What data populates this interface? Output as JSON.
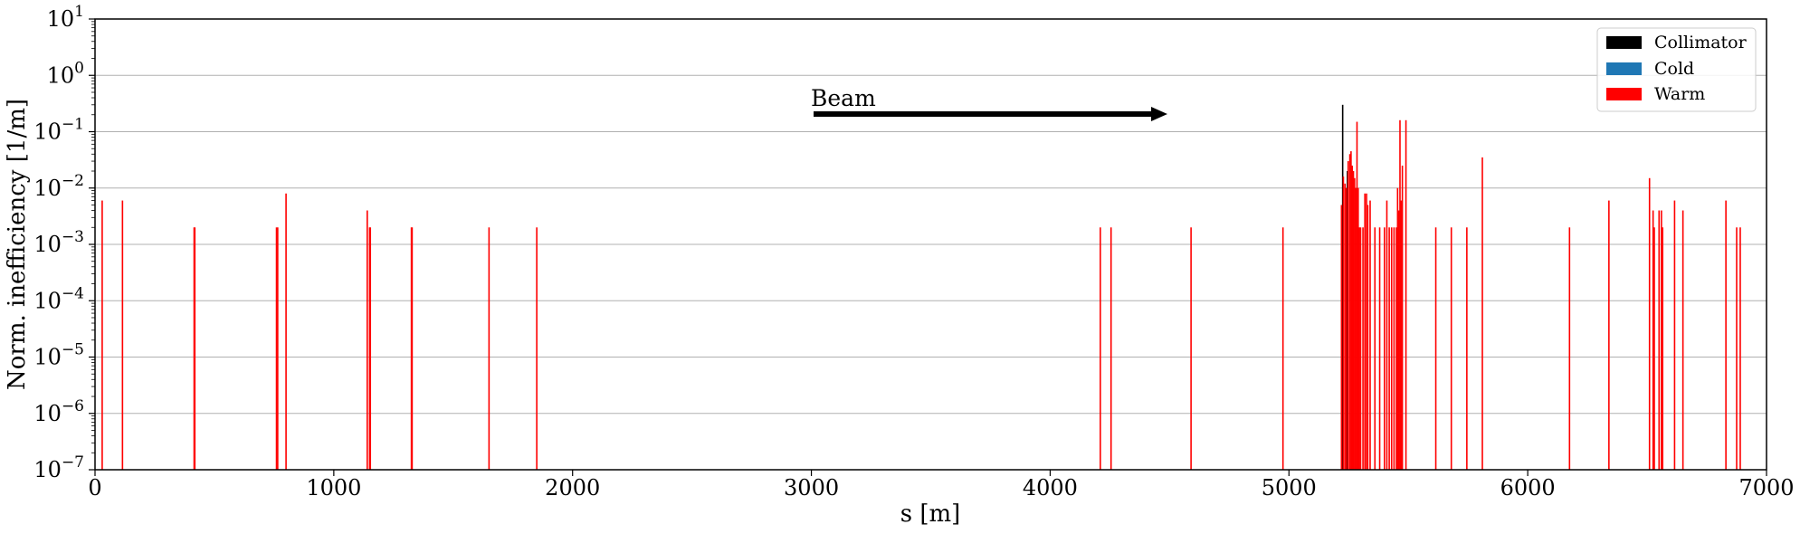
{
  "chart_data": {
    "type": "bar",
    "xlabel": "s [m]",
    "ylabel": "Norm. inefficiency [1/m]",
    "xlim": [
      0,
      7000
    ],
    "ylim": [
      1e-07,
      10
    ],
    "yscale": "log",
    "grid": "horizontal",
    "legend_placement": "top-right",
    "x_ticks": [
      "0",
      "1000",
      "2000",
      "3000",
      "4000",
      "5000",
      "6000",
      "7000"
    ],
    "y_ticks": [
      {
        "base": "10",
        "exp": "1"
      },
      {
        "base": "10",
        "exp": "0"
      },
      {
        "base": "10",
        "exp": "−1"
      },
      {
        "base": "10",
        "exp": "−2"
      },
      {
        "base": "10",
        "exp": "−3"
      },
      {
        "base": "10",
        "exp": "−4"
      },
      {
        "base": "10",
        "exp": "−5"
      },
      {
        "base": "10",
        "exp": "−6"
      },
      {
        "base": "10",
        "exp": "−7"
      }
    ],
    "annotation": {
      "text": "Beam",
      "arrow_from_x": 3000,
      "arrow_to_x": 4500,
      "y": 0.2
    },
    "series": [
      {
        "name": "Collimator",
        "color": "#000000",
        "points": [
          {
            "s": 5225,
            "v": 0.3
          },
          {
            "s": 5245,
            "v": 0.02
          }
        ]
      },
      {
        "name": "Cold",
        "color": "#1f77b4",
        "points": []
      },
      {
        "name": "Warm",
        "color": "#ff0000",
        "points": [
          {
            "s": 30,
            "v": 0.006
          },
          {
            "s": 115,
            "v": 0.006
          },
          {
            "s": 415,
            "v": 0.002
          },
          {
            "s": 418,
            "v": 0.002
          },
          {
            "s": 760,
            "v": 0.002
          },
          {
            "s": 765,
            "v": 0.002
          },
          {
            "s": 800,
            "v": 0.008
          },
          {
            "s": 1140,
            "v": 0.004
          },
          {
            "s": 1150,
            "v": 0.002
          },
          {
            "s": 1153,
            "v": 0.002
          },
          {
            "s": 1325,
            "v": 0.002
          },
          {
            "s": 1328,
            "v": 0.002
          },
          {
            "s": 1650,
            "v": 0.002
          },
          {
            "s": 1850,
            "v": 0.002
          },
          {
            "s": 4210,
            "v": 0.002
          },
          {
            "s": 4255,
            "v": 0.002
          },
          {
            "s": 4590,
            "v": 0.002
          },
          {
            "s": 4975,
            "v": 0.002
          },
          {
            "s": 5220,
            "v": 0.005
          },
          {
            "s": 5228,
            "v": 0.016
          },
          {
            "s": 5235,
            "v": 0.012
          },
          {
            "s": 5240,
            "v": 0.01
          },
          {
            "s": 5248,
            "v": 0.03
          },
          {
            "s": 5255,
            "v": 0.04
          },
          {
            "s": 5260,
            "v": 0.045
          },
          {
            "s": 5265,
            "v": 0.025
          },
          {
            "s": 5270,
            "v": 0.02
          },
          {
            "s": 5275,
            "v": 0.015
          },
          {
            "s": 5280,
            "v": 0.01
          },
          {
            "s": 5285,
            "v": 0.15
          },
          {
            "s": 5290,
            "v": 0.01
          },
          {
            "s": 5295,
            "v": 0.002
          },
          {
            "s": 5300,
            "v": 0.002
          },
          {
            "s": 5310,
            "v": 0.002
          },
          {
            "s": 5318,
            "v": 0.008
          },
          {
            "s": 5325,
            "v": 0.008
          },
          {
            "s": 5330,
            "v": 0.005
          },
          {
            "s": 5340,
            "v": 0.006
          },
          {
            "s": 5360,
            "v": 0.002
          },
          {
            "s": 5380,
            "v": 0.002
          },
          {
            "s": 5400,
            "v": 0.002
          },
          {
            "s": 5410,
            "v": 0.006
          },
          {
            "s": 5420,
            "v": 0.002
          },
          {
            "s": 5430,
            "v": 0.002
          },
          {
            "s": 5440,
            "v": 0.002
          },
          {
            "s": 5450,
            "v": 0.002
          },
          {
            "s": 5455,
            "v": 0.01
          },
          {
            "s": 5460,
            "v": 0.004
          },
          {
            "s": 5465,
            "v": 0.16
          },
          {
            "s": 5470,
            "v": 0.006
          },
          {
            "s": 5475,
            "v": 0.025
          },
          {
            "s": 5490,
            "v": 0.16
          },
          {
            "s": 5615,
            "v": 0.002
          },
          {
            "s": 5680,
            "v": 0.002
          },
          {
            "s": 5745,
            "v": 0.002
          },
          {
            "s": 5810,
            "v": 0.035
          },
          {
            "s": 6175,
            "v": 0.002
          },
          {
            "s": 6340,
            "v": 0.006
          },
          {
            "s": 6510,
            "v": 0.015
          },
          {
            "s": 6525,
            "v": 0.004
          },
          {
            "s": 6530,
            "v": 0.002
          },
          {
            "s": 6550,
            "v": 0.004
          },
          {
            "s": 6560,
            "v": 0.004
          },
          {
            "s": 6565,
            "v": 0.002
          },
          {
            "s": 6615,
            "v": 0.006
          },
          {
            "s": 6650,
            "v": 0.004
          },
          {
            "s": 6830,
            "v": 0.006
          },
          {
            "s": 6875,
            "v": 0.002
          },
          {
            "s": 6890,
            "v": 0.002
          }
        ]
      }
    ]
  }
}
